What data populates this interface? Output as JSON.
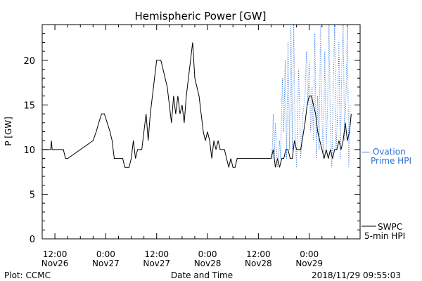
{
  "chart_data": {
    "type": "line",
    "title": "Hemispheric Power [GW]",
    "xlabel": "Date and Time",
    "ylabel": "P [GW]",
    "ylim": [
      0,
      24
    ],
    "yticks": [
      0,
      5,
      10,
      15,
      20
    ],
    "xlim": [
      "2018-11-26 09:00",
      "2018-11-29 12:00"
    ],
    "xticks": [
      {
        "t": "2018-11-26 12:00",
        "line1": "12:00",
        "line2": "Nov26"
      },
      {
        "t": "2018-11-27 00:00",
        "line1": "0:00",
        "line2": "Nov27"
      },
      {
        "t": "2018-11-27 12:00",
        "line1": "12:00",
        "line2": "Nov27"
      },
      {
        "t": "2018-11-28 00:00",
        "line1": "0:00",
        "line2": "Nov28"
      },
      {
        "t": "2018-11-28 12:00",
        "line1": "12:00",
        "line2": "Nov28"
      },
      {
        "t": "2018-11-29 00:00",
        "line1": "0:00",
        "line2": "Nov29"
      }
    ],
    "footer_left": "Plot: CCMC",
    "footer_right": "2018/11/29 09:55:03",
    "series": [
      {
        "name": "SWPC 5-min HPI",
        "legend_line1": "SWPC",
        "legend_line2": "5-min HPI",
        "color": "#000000",
        "style": "solid",
        "points": [
          [
            "2018-11-26 09:00",
            10
          ],
          [
            "2018-11-26 11:00",
            10
          ],
          [
            "2018-11-26 11:10",
            11
          ],
          [
            "2018-11-26 11:20",
            10
          ],
          [
            "2018-11-26 14:00",
            10
          ],
          [
            "2018-11-26 14:30",
            9
          ],
          [
            "2018-11-26 15:00",
            9
          ],
          [
            "2018-11-26 21:00",
            11
          ],
          [
            "2018-11-26 21:45",
            12
          ],
          [
            "2018-11-26 22:20",
            13
          ],
          [
            "2018-11-26 23:00",
            14
          ],
          [
            "2018-11-26 23:40",
            14
          ],
          [
            "2018-11-27 00:20",
            13
          ],
          [
            "2018-11-27 01:00",
            12
          ],
          [
            "2018-11-27 01:30",
            11
          ],
          [
            "2018-11-27 01:45",
            10
          ],
          [
            "2018-11-27 02:00",
            9
          ],
          [
            "2018-11-27 04:00",
            9
          ],
          [
            "2018-11-27 04:30",
            8
          ],
          [
            "2018-11-27 05:30",
            8
          ],
          [
            "2018-11-27 06:00",
            9
          ],
          [
            "2018-11-27 06:30",
            11
          ],
          [
            "2018-11-27 07:00",
            9
          ],
          [
            "2018-11-27 07:30",
            10
          ],
          [
            "2018-11-27 08:30",
            10
          ],
          [
            "2018-11-27 09:00",
            12
          ],
          [
            "2018-11-27 09:30",
            14
          ],
          [
            "2018-11-27 10:00",
            11
          ],
          [
            "2018-11-27 10:30",
            14
          ],
          [
            "2018-11-27 11:00",
            16
          ],
          [
            "2018-11-27 11:30",
            18
          ],
          [
            "2018-11-27 12:00",
            20
          ],
          [
            "2018-11-27 13:00",
            20
          ],
          [
            "2018-11-27 13:30",
            19
          ],
          [
            "2018-11-27 14:00",
            18
          ],
          [
            "2018-11-27 14:30",
            17
          ],
          [
            "2018-11-27 15:00",
            15
          ],
          [
            "2018-11-27 15:30",
            13
          ],
          [
            "2018-11-27 16:00",
            16
          ],
          [
            "2018-11-27 16:30",
            14
          ],
          [
            "2018-11-27 17:00",
            16
          ],
          [
            "2018-11-27 17:30",
            14
          ],
          [
            "2018-11-27 18:00",
            15
          ],
          [
            "2018-11-27 18:30",
            13
          ],
          [
            "2018-11-27 19:00",
            16
          ],
          [
            "2018-11-27 19:30",
            18
          ],
          [
            "2018-11-27 20:00",
            20
          ],
          [
            "2018-11-27 20:30",
            22
          ],
          [
            "2018-11-27 21:00",
            18
          ],
          [
            "2018-11-27 21:30",
            17
          ],
          [
            "2018-11-27 22:00",
            16
          ],
          [
            "2018-11-27 22:30",
            14
          ],
          [
            "2018-11-27 23:00",
            12
          ],
          [
            "2018-11-27 23:30",
            11
          ],
          [
            "2018-11-28 00:00",
            12
          ],
          [
            "2018-11-28 00:30",
            11
          ],
          [
            "2018-11-28 01:00",
            9
          ],
          [
            "2018-11-28 01:30",
            11
          ],
          [
            "2018-11-28 02:00",
            10
          ],
          [
            "2018-11-28 02:30",
            11
          ],
          [
            "2018-11-28 03:00",
            10
          ],
          [
            "2018-11-28 04:00",
            10
          ],
          [
            "2018-11-28 04:30",
            9
          ],
          [
            "2018-11-28 05:00",
            8
          ],
          [
            "2018-11-28 05:30",
            9
          ],
          [
            "2018-11-28 06:00",
            8
          ],
          [
            "2018-11-28 06:30",
            8
          ],
          [
            "2018-11-28 07:00",
            9
          ],
          [
            "2018-11-28 15:00",
            9
          ],
          [
            "2018-11-28 15:30",
            10
          ],
          [
            "2018-11-28 16:00",
            8
          ],
          [
            "2018-11-28 16:30",
            9
          ],
          [
            "2018-11-28 17:00",
            8
          ],
          [
            "2018-11-28 17:30",
            9
          ],
          [
            "2018-11-28 18:00",
            9
          ],
          [
            "2018-11-28 18:30",
            10
          ],
          [
            "2018-11-28 19:00",
            10
          ],
          [
            "2018-11-28 19:30",
            9
          ],
          [
            "2018-11-28 20:00",
            9
          ],
          [
            "2018-11-28 20:30",
            11
          ],
          [
            "2018-11-28 21:00",
            10
          ],
          [
            "2018-11-28 22:00",
            10
          ],
          [
            "2018-11-28 23:00",
            13
          ],
          [
            "2018-11-28 23:30",
            15
          ],
          [
            "2018-11-29 00:00",
            16
          ],
          [
            "2018-11-29 00:30",
            16
          ],
          [
            "2018-11-29 01:00",
            15
          ],
          [
            "2018-11-29 01:30",
            14
          ],
          [
            "2018-11-29 02:00",
            12
          ],
          [
            "2018-11-29 02:30",
            11
          ],
          [
            "2018-11-29 03:00",
            10
          ],
          [
            "2018-11-29 03:30",
            9
          ],
          [
            "2018-11-29 04:00",
            10
          ],
          [
            "2018-11-29 04:30",
            9
          ],
          [
            "2018-11-29 05:00",
            10
          ],
          [
            "2018-11-29 05:30",
            9
          ],
          [
            "2018-11-29 06:00",
            10
          ],
          [
            "2018-11-29 06:30",
            10
          ],
          [
            "2018-11-29 07:00",
            11
          ],
          [
            "2018-11-29 07:30",
            10
          ],
          [
            "2018-11-29 08:00",
            11
          ],
          [
            "2018-11-29 08:30",
            13
          ],
          [
            "2018-11-29 09:00",
            11
          ],
          [
            "2018-11-29 09:30",
            12
          ],
          [
            "2018-11-29 09:55",
            14
          ]
        ]
      },
      {
        "name": "Ovation Prime HPI",
        "legend_line1": "— Ovation",
        "legend_line2": "Prime HPI",
        "color": "#2b6fd6",
        "style": "dotted",
        "points": [
          [
            "2018-11-28 15:00",
            10
          ],
          [
            "2018-11-28 15:15",
            9
          ],
          [
            "2018-11-28 15:30",
            14
          ],
          [
            "2018-11-28 15:45",
            9
          ],
          [
            "2018-11-28 16:00",
            13
          ],
          [
            "2018-11-28 16:30",
            8
          ],
          [
            "2018-11-28 17:00",
            11
          ],
          [
            "2018-11-28 17:15",
            9
          ],
          [
            "2018-11-28 17:40",
            18
          ],
          [
            "2018-11-28 18:00",
            12
          ],
          [
            "2018-11-28 18:20",
            20
          ],
          [
            "2018-11-28 18:40",
            9
          ],
          [
            "2018-11-28 19:00",
            22
          ],
          [
            "2018-11-28 19:20",
            10
          ],
          [
            "2018-11-28 19:40",
            24
          ],
          [
            "2018-11-28 20:00",
            10
          ],
          [
            "2018-11-28 20:20",
            24
          ],
          [
            "2018-11-28 20:40",
            12
          ],
          [
            "2018-11-28 21:00",
            8
          ],
          [
            "2018-11-28 21:30",
            19
          ],
          [
            "2018-11-28 22:00",
            9
          ],
          [
            "2018-11-28 22:30",
            14
          ],
          [
            "2018-11-28 23:00",
            16
          ],
          [
            "2018-11-28 23:20",
            21
          ],
          [
            "2018-11-28 23:40",
            15
          ],
          [
            "2018-11-29 00:00",
            20
          ],
          [
            "2018-11-29 00:20",
            12
          ],
          [
            "2018-11-29 00:40",
            17
          ],
          [
            "2018-11-29 01:00",
            11
          ],
          [
            "2018-11-29 01:20",
            23
          ],
          [
            "2018-11-29 01:40",
            9
          ],
          [
            "2018-11-29 02:00",
            16
          ],
          [
            "2018-11-29 02:20",
            10
          ],
          [
            "2018-11-29 02:40",
            24
          ],
          [
            "2018-11-29 03:00",
            13
          ],
          [
            "2018-11-29 03:20",
            9
          ],
          [
            "2018-11-29 03:40",
            21
          ],
          [
            "2018-11-29 04:00",
            10
          ],
          [
            "2018-11-29 04:20",
            15
          ],
          [
            "2018-11-29 04:40",
            24
          ],
          [
            "2018-11-29 05:00",
            12
          ],
          [
            "2018-11-29 05:20",
            8
          ],
          [
            "2018-11-29 05:40",
            17
          ],
          [
            "2018-11-29 06:00",
            24
          ],
          [
            "2018-11-29 06:20",
            10
          ],
          [
            "2018-11-29 06:40",
            14
          ],
          [
            "2018-11-29 07:00",
            22
          ],
          [
            "2018-11-29 07:20",
            9
          ],
          [
            "2018-11-29 07:40",
            19
          ],
          [
            "2018-11-29 08:00",
            24
          ],
          [
            "2018-11-29 08:20",
            11
          ],
          [
            "2018-11-29 08:40",
            16
          ],
          [
            "2018-11-29 09:00",
            24
          ],
          [
            "2018-11-29 09:20",
            8
          ],
          [
            "2018-11-29 09:40",
            15
          ]
        ]
      }
    ]
  }
}
